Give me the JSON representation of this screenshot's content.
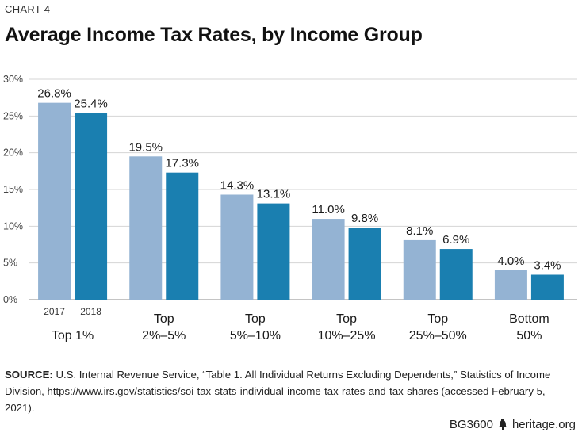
{
  "kicker": "CHART 4",
  "title": "Average Income Tax Rates, by Income Group",
  "source": {
    "label": "SOURCE:",
    "text": "U.S. Internal Revenue Service, “Table 1. All Individual Returns Excluding Dependents,” Statistics of Income Division, https://www.irs.gov/statistics/soi-tax-stats-individual-income-tax-rates-and-tax-shares (accessed February 5, 2021)."
  },
  "footer": {
    "code": "BG3600",
    "site": "heritage.org"
  },
  "colors": {
    "series_2017": "#94b3d3",
    "series_2018": "#1a7fb0",
    "grid": "#d4d4d4",
    "axis": "#888888"
  },
  "chart_data": {
    "type": "bar",
    "categories": [
      "Top 1%",
      "Top 2%–5%",
      "Top 5%–10%",
      "Top 10%–25%",
      "Top 25%–50%",
      "Bottom 50%"
    ],
    "category_lines": [
      [
        "Top 1%"
      ],
      [
        "Top",
        "2%–5%"
      ],
      [
        "Top",
        "5%–10%"
      ],
      [
        "Top",
        "10%–25%"
      ],
      [
        "Top",
        "25%–50%"
      ],
      [
        "Bottom",
        "50%"
      ]
    ],
    "series": [
      {
        "name": "2017",
        "values": [
          26.8,
          19.5,
          14.3,
          11.0,
          8.1,
          4.0
        ],
        "labels": [
          "26.8%",
          "19.5%",
          "14.3%",
          "11.0%",
          "8.1%",
          "4.0%"
        ]
      },
      {
        "name": "2018",
        "values": [
          25.4,
          17.3,
          13.1,
          9.8,
          6.9,
          3.4
        ],
        "labels": [
          "25.4%",
          "17.3%",
          "13.1%",
          "9.8%",
          "6.9%",
          "3.4%"
        ]
      }
    ],
    "yticks": [
      0,
      5,
      10,
      15,
      20,
      25,
      30
    ],
    "ytick_labels": [
      "0%",
      "5%",
      "10%",
      "15%",
      "20%",
      "25%",
      "30%"
    ],
    "ylim": [
      0,
      30
    ],
    "grid": true,
    "legend": "series names shown under first category"
  }
}
